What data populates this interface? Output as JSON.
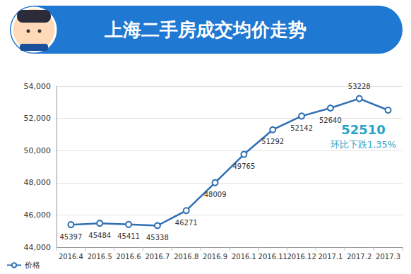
{
  "chart_data": {
    "type": "line",
    "title": "上海二手房成交均价走势",
    "categories": [
      "2016.4",
      "2016.5",
      "2016.6",
      "2016.7",
      "2016.8",
      "2016.9",
      "2016.1",
      "2016.11",
      "2016.12",
      "2017.1",
      "2017.2",
      "2017.3"
    ],
    "series": [
      {
        "name": "价格",
        "color": "#2f6fb3",
        "values": [
          45397,
          45484,
          45411,
          45338,
          46271,
          48009,
          49765,
          51292,
          52142,
          52640,
          53228,
          52510
        ]
      }
    ],
    "annotation": "环比下跌1.35%",
    "ylim": [
      44000,
      54000
    ],
    "yticks": [
      44000,
      46000,
      48000,
      50000,
      52000,
      54000
    ],
    "grid": true,
    "legend": "bottom-left",
    "data_labels": true,
    "marker": "circle"
  }
}
